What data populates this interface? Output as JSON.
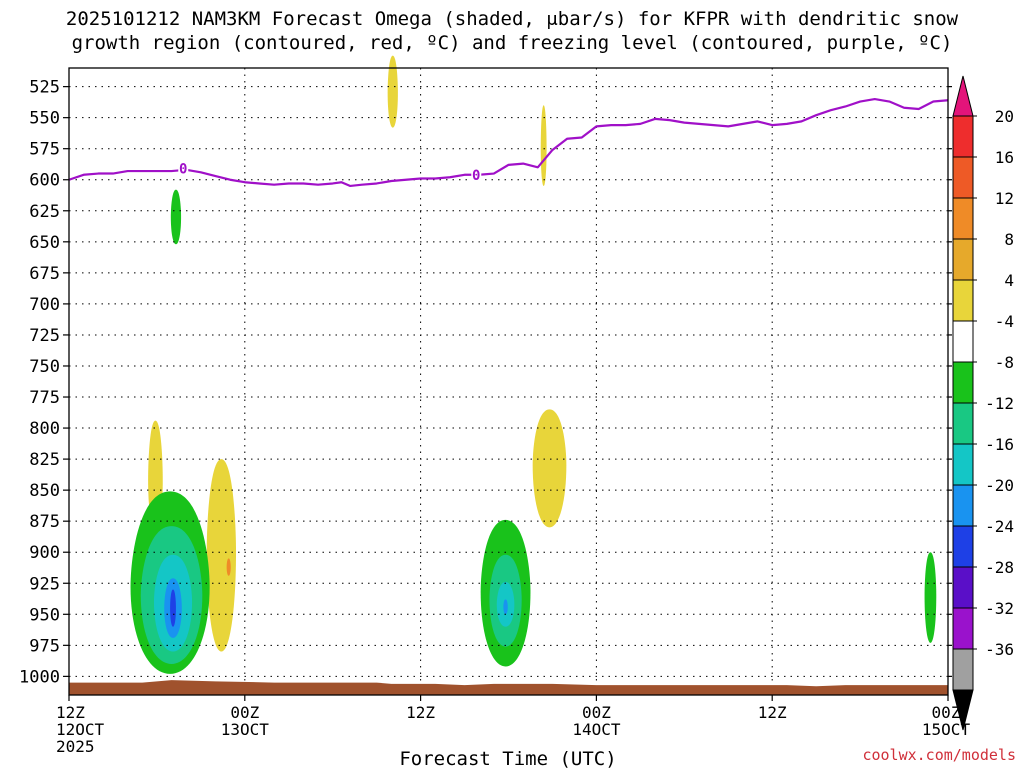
{
  "title": {
    "line1": "2025101212 NAM3KM Forecast Omega (shaded, μbar/s) for KFPR with dendritic snow",
    "line2": "growth region (contoured, red, ºC) and freezing level (contoured, purple, ºC)"
  },
  "credit": "coolwx.com/models",
  "chart_data": {
    "type": "heatmap",
    "xlabel": "Forecast Time (UTC)",
    "ylabel": "",
    "x_unit": "forecast hour",
    "xlim": [
      0,
      60
    ],
    "ylim": [
      1015,
      510
    ],
    "y_scale": "linear (pressure, decreasing upward)",
    "grid": true,
    "x_ticks": [
      {
        "value": 0,
        "label1": "12Z",
        "label2": "12OCT",
        "label3": "2025"
      },
      {
        "value": 12,
        "label1": "00Z",
        "label2": "13OCT",
        "label3": ""
      },
      {
        "value": 24,
        "label1": "12Z",
        "label2": "",
        "label3": ""
      },
      {
        "value": 36,
        "label1": "00Z",
        "label2": "14OCT",
        "label3": ""
      },
      {
        "value": 48,
        "label1": "12Z",
        "label2": "",
        "label3": ""
      },
      {
        "value": 60,
        "label1": "00Z",
        "label2": "15OCT",
        "label3": ""
      }
    ],
    "y_ticks": [
      525,
      550,
      575,
      600,
      625,
      650,
      675,
      700,
      725,
      750,
      775,
      800,
      825,
      850,
      875,
      900,
      925,
      950,
      975,
      1000
    ],
    "colorbar": {
      "position": "right",
      "labels": [
        "20",
        "16",
        "12",
        "8",
        "4",
        "-4",
        "-8",
        "-12",
        "-16",
        "-20",
        "-24",
        "-28",
        "-32",
        "-36"
      ],
      "bins": [
        {
          "color": "#e3147a",
          "shape": "triangle-up"
        },
        {
          "color": "#ee2d2d"
        },
        {
          "color": "#ee5a26"
        },
        {
          "color": "#ef8b27"
        },
        {
          "color": "#e6a92b"
        },
        {
          "color": "#e8d53a"
        },
        {
          "color": "#ffffff"
        },
        {
          "color": "#19c21b"
        },
        {
          "color": "#19c883"
        },
        {
          "color": "#14c6c6"
        },
        {
          "color": "#1993f0"
        },
        {
          "color": "#1e40e6"
        },
        {
          "color": "#5a0fc8"
        },
        {
          "color": "#9a12cc"
        },
        {
          "color": "#a0a0a0"
        },
        {
          "color": "#000000",
          "shape": "triangle-down"
        }
      ]
    },
    "freezing_level": {
      "color": "#a010c8",
      "label": "0",
      "label_points": [
        {
          "x": 7.8,
          "y": 591
        },
        {
          "x": 27.8,
          "y": 596
        }
      ],
      "points": [
        {
          "x": 0,
          "y": 600
        },
        {
          "x": 1,
          "y": 596
        },
        {
          "x": 2,
          "y": 595
        },
        {
          "x": 3,
          "y": 595
        },
        {
          "x": 4,
          "y": 593
        },
        {
          "x": 5,
          "y": 593
        },
        {
          "x": 6,
          "y": 593
        },
        {
          "x": 7,
          "y": 593
        },
        {
          "x": 8,
          "y": 592
        },
        {
          "x": 9,
          "y": 594
        },
        {
          "x": 10,
          "y": 597
        },
        {
          "x": 11,
          "y": 600
        },
        {
          "x": 12,
          "y": 602
        },
        {
          "x": 13,
          "y": 603
        },
        {
          "x": 14,
          "y": 604
        },
        {
          "x": 15,
          "y": 603
        },
        {
          "x": 16,
          "y": 603
        },
        {
          "x": 17,
          "y": 604
        },
        {
          "x": 18,
          "y": 603
        },
        {
          "x": 18.6,
          "y": 602
        },
        {
          "x": 19.2,
          "y": 605
        },
        {
          "x": 20,
          "y": 604
        },
        {
          "x": 21,
          "y": 603
        },
        {
          "x": 22,
          "y": 601
        },
        {
          "x": 23,
          "y": 600
        },
        {
          "x": 24,
          "y": 599
        },
        {
          "x": 25,
          "y": 599
        },
        {
          "x": 26,
          "y": 598
        },
        {
          "x": 27,
          "y": 596
        },
        {
          "x": 28,
          "y": 596
        },
        {
          "x": 29,
          "y": 595
        },
        {
          "x": 30,
          "y": 588
        },
        {
          "x": 31,
          "y": 587
        },
        {
          "x": 32,
          "y": 590
        },
        {
          "x": 33,
          "y": 576
        },
        {
          "x": 34,
          "y": 567
        },
        {
          "x": 35,
          "y": 566
        },
        {
          "x": 36,
          "y": 557
        },
        {
          "x": 37,
          "y": 556
        },
        {
          "x": 38,
          "y": 556
        },
        {
          "x": 39,
          "y": 555
        },
        {
          "x": 40,
          "y": 551
        },
        {
          "x": 41,
          "y": 552
        },
        {
          "x": 42,
          "y": 554
        },
        {
          "x": 43,
          "y": 555
        },
        {
          "x": 44,
          "y": 556
        },
        {
          "x": 45,
          "y": 557
        },
        {
          "x": 46,
          "y": 555
        },
        {
          "x": 47,
          "y": 553
        },
        {
          "x": 48,
          "y": 556
        },
        {
          "x": 49,
          "y": 555
        },
        {
          "x": 50,
          "y": 553
        },
        {
          "x": 51,
          "y": 548
        },
        {
          "x": 52,
          "y": 544
        },
        {
          "x": 53,
          "y": 541
        },
        {
          "x": 54,
          "y": 537
        },
        {
          "x": 55,
          "y": 535
        },
        {
          "x": 56,
          "y": 537
        },
        {
          "x": 57,
          "y": 542
        },
        {
          "x": 58,
          "y": 543
        },
        {
          "x": 59,
          "y": 537
        },
        {
          "x": 60,
          "y": 536
        }
      ]
    },
    "terrain": {
      "color": "#a0522d",
      "points": [
        {
          "x": 0,
          "y": 1005
        },
        {
          "x": 5,
          "y": 1005
        },
        {
          "x": 7,
          "y": 1003
        },
        {
          "x": 10,
          "y": 1004
        },
        {
          "x": 14,
          "y": 1005
        },
        {
          "x": 21,
          "y": 1005
        },
        {
          "x": 22,
          "y": 1006
        },
        {
          "x": 25,
          "y": 1006
        },
        {
          "x": 27,
          "y": 1007
        },
        {
          "x": 29,
          "y": 1006
        },
        {
          "x": 33,
          "y": 1006
        },
        {
          "x": 36,
          "y": 1007
        },
        {
          "x": 45,
          "y": 1007
        },
        {
          "x": 49,
          "y": 1007
        },
        {
          "x": 51,
          "y": 1008
        },
        {
          "x": 53,
          "y": 1007
        },
        {
          "x": 60,
          "y": 1007
        }
      ]
    },
    "features": [
      {
        "kind": "upward",
        "value": -6,
        "layers": [
          {
            "color": "#19c21b",
            "cx": 7.3,
            "cy": 630,
            "rx": 0.35,
            "ry_top": 22,
            "ry_bot": 22
          }
        ]
      },
      {
        "kind": "downward",
        "value": 6,
        "layers": [
          {
            "color": "#e8d53a",
            "cx": 5.9,
            "cy": 842,
            "rx": 0.5,
            "ry_top": 48,
            "ry_bot": 40
          }
        ]
      },
      {
        "kind": "downward",
        "value": 6,
        "layers": [
          {
            "color": "#e8d53a",
            "cx": 10.4,
            "cy": 900,
            "rx": 1.0,
            "ry_top": 75,
            "ry_bot": 80
          }
        ]
      },
      {
        "kind": "downward",
        "value": 10,
        "layers": [
          {
            "color": "#ef8b27",
            "cx": 10.9,
            "cy": 912,
            "rx": 0.14,
            "ry_top": 7,
            "ry_bot": 7
          }
        ]
      },
      {
        "kind": "downward",
        "value": 6,
        "layers": [
          {
            "color": "#e8d53a",
            "cx": 22.1,
            "cy": 530,
            "rx": 0.35,
            "ry_top": 30,
            "ry_bot": 28
          }
        ]
      },
      {
        "kind": "downward",
        "value": 6,
        "layers": [
          {
            "color": "#e8d53a",
            "cx": 32.4,
            "cy": 575,
            "rx": 0.2,
            "ry_top": 35,
            "ry_bot": 30
          }
        ]
      },
      {
        "kind": "downward",
        "value": 6,
        "layers": [
          {
            "color": "#e8d53a",
            "cx": 32.8,
            "cy": 830,
            "rx": 1.15,
            "ry_top": 45,
            "ry_bot": 50
          }
        ]
      },
      {
        "kind": "upward",
        "value": -6,
        "layers": [
          {
            "color": "#19c21b",
            "cx": 58.8,
            "cy": 935,
            "rx": 0.4,
            "ry_top": 35,
            "ry_bot": 38
          }
        ]
      },
      {
        "kind": "upward",
        "value": -16,
        "layers": [
          {
            "color": "#19c21b",
            "cx": 6.9,
            "cy": 928,
            "rx": 2.7,
            "ry_top": 77,
            "ry_bot": 70
          },
          {
            "color": "#19c883",
            "cx": 7.0,
            "cy": 935,
            "rx": 2.1,
            "ry_top": 56,
            "ry_bot": 55
          },
          {
            "color": "#14c6c6",
            "cx": 7.1,
            "cy": 940,
            "rx": 1.3,
            "ry_top": 38,
            "ry_bot": 40
          },
          {
            "color": "#1993f0",
            "cx": 7.1,
            "cy": 945,
            "rx": 0.6,
            "ry_top": 24,
            "ry_bot": 24
          },
          {
            "color": "#1e40e6",
            "cx": 7.1,
            "cy": 945,
            "rx": 0.2,
            "ry_top": 15,
            "ry_bot": 15
          }
        ]
      },
      {
        "kind": "upward",
        "value": -14,
        "layers": [
          {
            "color": "#19c21b",
            "cx": 29.8,
            "cy": 932,
            "rx": 1.7,
            "ry_top": 58,
            "ry_bot": 60
          },
          {
            "color": "#19c883",
            "cx": 29.8,
            "cy": 938,
            "rx": 1.1,
            "ry_top": 36,
            "ry_bot": 38
          },
          {
            "color": "#14c6c6",
            "cx": 29.8,
            "cy": 942,
            "rx": 0.6,
            "ry_top": 18,
            "ry_bot": 18
          },
          {
            "color": "#1993f0",
            "cx": 29.8,
            "cy": 944,
            "rx": 0.15,
            "ry_top": 6,
            "ry_bot": 6
          }
        ]
      }
    ]
  }
}
